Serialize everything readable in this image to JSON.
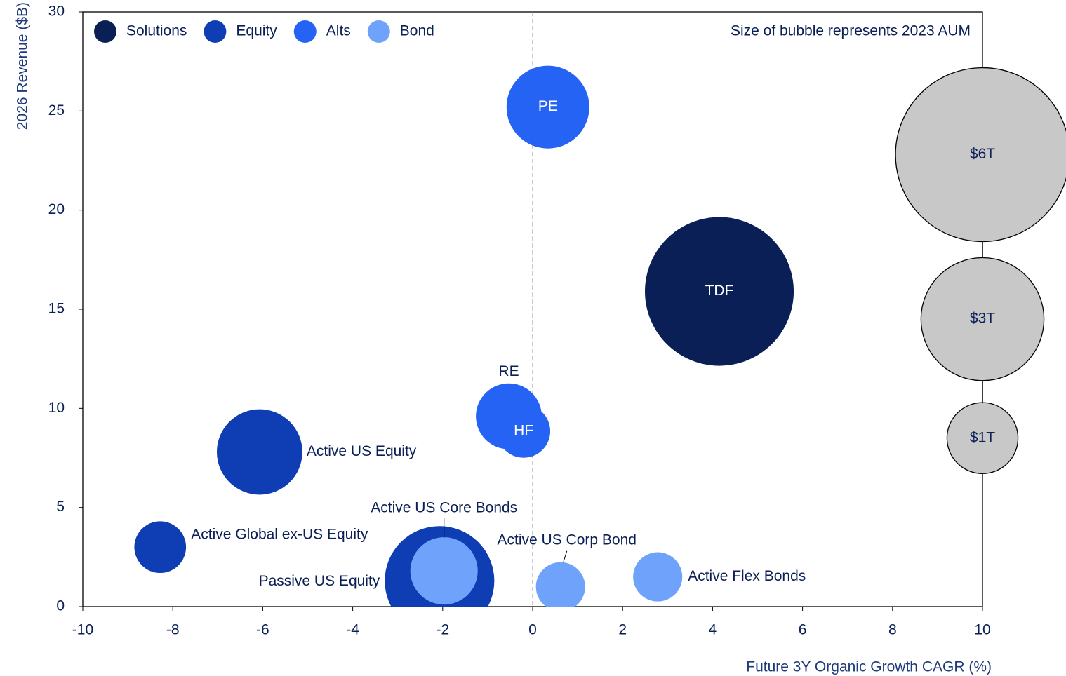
{
  "chart_data": {
    "type": "bubble",
    "annotation": "Size of bubble represents 2023 AUM",
    "xlabel": "Future 3Y Organic Growth CAGR (%)",
    "ylabel": "2026 Revenue ($B)",
    "xlim": [
      -10,
      10
    ],
    "xticks": [
      -10,
      -8,
      -6,
      -4,
      -2,
      0,
      2,
      4,
      6,
      8,
      10
    ],
    "ylim": [
      0,
      30
    ],
    "yticks": [
      0,
      5,
      10,
      15,
      20,
      25,
      30
    ],
    "legend": "top-left",
    "series": [
      {
        "name": "Solutions",
        "color": "#0a1f56",
        "labels": [
          "TDF"
        ],
        "x": [
          4.15
        ],
        "values": [
          15.9
        ],
        "sizes": [
          4.39
        ]
      },
      {
        "name": "Equity",
        "color": "#0f3db3",
        "labels": [
          "Active US Equity",
          "Active Global ex-US Equity",
          "Passive US Equity"
        ],
        "x": [
          -6.07,
          -8.28,
          -2.07
        ],
        "values": [
          7.8,
          3.0,
          1.3
        ],
        "sizes": [
          1.45,
          0.53,
          2.38
        ]
      },
      {
        "name": "Alts",
        "color": "#2563f5",
        "labels": [
          "PE",
          "RE",
          "HF"
        ],
        "x": [
          0.34,
          -0.53,
          -0.2
        ],
        "values": [
          25.2,
          9.6,
          8.85
        ],
        "sizes": [
          1.36,
          0.86,
          0.56
        ]
      },
      {
        "name": "Bond",
        "color": "#6fa3fb",
        "labels": [
          "Active US Core Bonds",
          "Active US Corp Bond",
          "Active Flex Bonds"
        ],
        "x": [
          -1.97,
          0.62,
          2.78
        ],
        "values": [
          1.8,
          1.0,
          1.5
        ],
        "sizes": [
          0.9,
          0.48,
          0.48
        ]
      }
    ],
    "size_legend": {
      "color": "#c8c8c8",
      "x": 10,
      "y": [
        22.8,
        14.5,
        8.5
      ],
      "values": [
        6,
        3,
        1
      ],
      "value_labels": [
        "$6T",
        "$3T",
        "$1T"
      ]
    }
  }
}
